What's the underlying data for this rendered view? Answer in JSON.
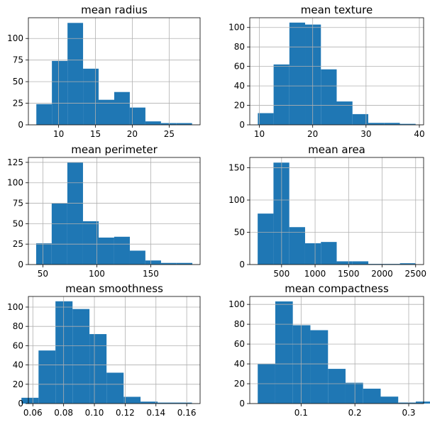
{
  "colors": {
    "bar": "#1f77b4",
    "grid": "#b0b0b0",
    "axis": "#000000",
    "background": "#ffffff"
  },
  "chart_data": [
    {
      "type": "bar",
      "title": "mean radius",
      "xlabel": "",
      "ylabel": "",
      "bin_edges": [
        6.98,
        9.09,
        11.21,
        13.32,
        15.43,
        17.55,
        19.66,
        21.78,
        23.89,
        26.0,
        28.11
      ],
      "values": [
        24,
        74,
        118,
        65,
        29,
        38,
        20,
        4,
        2,
        2
      ],
      "xlim": [
        5.9,
        29.2
      ],
      "ylim": [
        0,
        124
      ],
      "xticks": [
        10,
        15,
        20,
        25
      ],
      "yticks": [
        0,
        25,
        50,
        75,
        100
      ],
      "grid": true
    },
    {
      "type": "bar",
      "title": "mean texture",
      "xlabel": "",
      "ylabel": "",
      "bin_edges": [
        9.71,
        12.67,
        15.63,
        18.58,
        21.54,
        24.5,
        27.46,
        30.42,
        33.38,
        36.34,
        39.3
      ],
      "values": [
        12,
        62,
        105,
        103,
        57,
        24,
        11,
        2,
        2,
        1
      ],
      "xlim": [
        8.2,
        40.8
      ],
      "ylim": [
        0,
        110
      ],
      "xticks": [
        10,
        20,
        30,
        40
      ],
      "yticks": [
        0,
        20,
        40,
        60,
        80,
        100
      ],
      "grid": true
    },
    {
      "type": "bar",
      "title": "mean perimeter",
      "xlabel": "",
      "ylabel": "",
      "bin_edges": [
        43.8,
        58.2,
        72.7,
        87.2,
        101.7,
        116.1,
        130.6,
        145.0,
        159.5,
        173.9,
        188.5
      ],
      "values": [
        26,
        75,
        125,
        53,
        33,
        34,
        17,
        5,
        2,
        2
      ],
      "xlim": [
        36.6,
        195.7
      ],
      "ylim": [
        0,
        131
      ],
      "xticks": [
        50,
        100,
        150
      ],
      "yticks": [
        0,
        25,
        50,
        75,
        100,
        125
      ],
      "grid": true
    },
    {
      "type": "bar",
      "title": "mean area",
      "xlabel": "",
      "ylabel": "",
      "bin_edges": [
        143.5,
        379.3,
        615.1,
        850.9,
        1086.7,
        1322.5,
        1558.3,
        1794.1,
        2029.9,
        2265.7,
        2501.0
      ],
      "values": [
        79,
        158,
        58,
        33,
        35,
        5,
        5,
        1,
        1,
        2
      ],
      "xlim": [
        25.6,
        2618.9
      ],
      "ylim": [
        0,
        166
      ],
      "xticks": [
        500,
        1000,
        1500,
        2000,
        2500
      ],
      "yticks": [
        0,
        50,
        100,
        150
      ],
      "grid": true
    },
    {
      "type": "bar",
      "title": "mean smoothness",
      "xlabel": "",
      "ylabel": "",
      "bin_edges": [
        0.0526,
        0.0637,
        0.0747,
        0.0858,
        0.0968,
        0.1079,
        0.119,
        0.13,
        0.1411,
        0.1521,
        0.1634
      ],
      "values": [
        6,
        55,
        106,
        98,
        72,
        32,
        7,
        2,
        1,
        1
      ],
      "xlim": [
        0.0571,
        0.1687
      ],
      "ylim": [
        0,
        111
      ],
      "xticks": [
        0.06,
        0.08,
        0.1,
        0.12,
        0.14,
        0.16
      ],
      "yticks": [
        0,
        20,
        40,
        60,
        80,
        100
      ],
      "xtick_labels": [
        "0.06",
        "0.08",
        "0.10",
        "0.12",
        "0.14",
        "0.16"
      ],
      "grid": true
    },
    {
      "type": "bar",
      "title": "mean compactness",
      "xlabel": "",
      "ylabel": "",
      "bin_edges": [
        0.0194,
        0.052,
        0.0846,
        0.1173,
        0.15,
        0.1826,
        0.2152,
        0.2479,
        0.2805,
        0.3131,
        0.3454
      ],
      "values": [
        40,
        103,
        79,
        74,
        35,
        21,
        15,
        7,
        1,
        2
      ],
      "xlim": [
        0.0046,
        0.3277
      ],
      "ylim": [
        0,
        108
      ],
      "xticks": [
        0.1,
        0.2,
        0.3
      ],
      "yticks": [
        0,
        20,
        40,
        60,
        80,
        100
      ],
      "grid": true
    }
  ]
}
